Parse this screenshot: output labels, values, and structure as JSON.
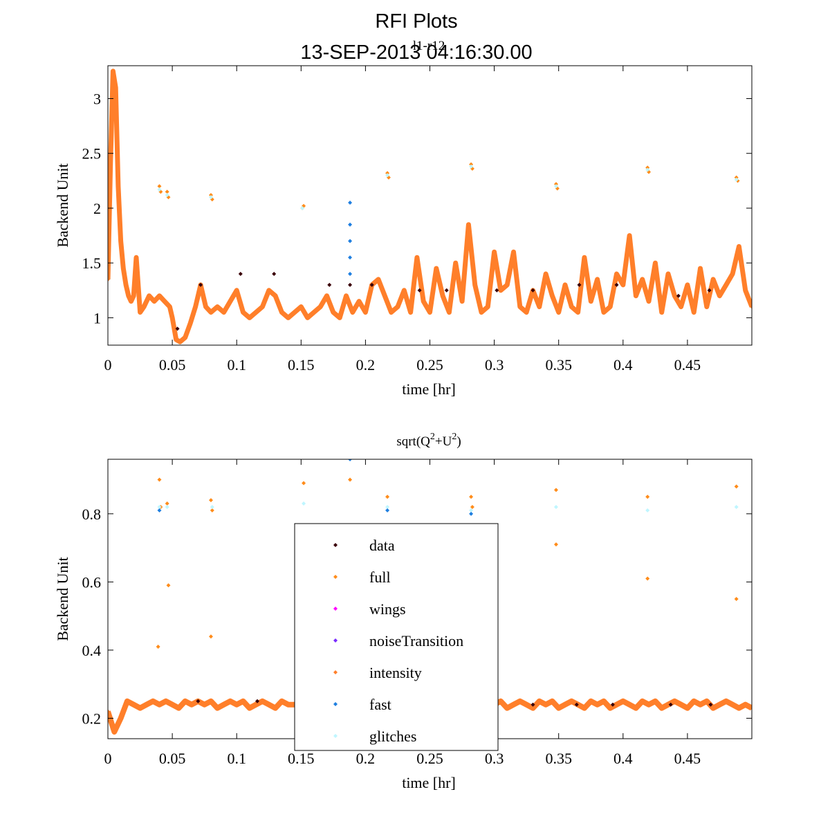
{
  "figure": {
    "title_line1": "RFI Plots",
    "title_line2": "13-SEP-2013 04:16:30.00",
    "overlay_label": "l1-r12"
  },
  "colors": {
    "data": "#3a0008",
    "full": "#ff8c1a",
    "wings": "#ff00ff",
    "noiseTransition": "#7a2bff",
    "intensity": "#ff7f2a",
    "fast": "#1f7fe0",
    "glitches": "#bff6ff"
  },
  "legend": {
    "entries": [
      "data",
      "full",
      "wings",
      "noiseTransition",
      "intensity",
      "fast",
      "glitches"
    ]
  },
  "chart_data": [
    {
      "type": "scatter",
      "title": "",
      "xlabel": "time [hr]",
      "ylabel": "Backend Unit",
      "xlim": [
        0,
        0.5
      ],
      "ylim": [
        0.75,
        3.3
      ],
      "xticks": [
        0,
        0.05,
        0.1,
        0.15,
        0.2,
        0.25,
        0.3,
        0.35,
        0.4,
        0.45
      ],
      "xtick_labels": [
        "0",
        "0.05",
        "0.1",
        "0.15",
        "0.2",
        "0.25",
        "0.3",
        "0.35",
        "0.4",
        "0.45"
      ],
      "yticks": [
        1,
        1.5,
        2,
        2.5,
        3
      ],
      "ytick_labels": [
        "1",
        "1.5",
        "2",
        "2.5",
        "3"
      ],
      "series": [
        {
          "key": "intensity",
          "x": [
            0,
            0.002,
            0.004,
            0.006,
            0.008,
            0.01,
            0.012,
            0.014,
            0.016,
            0.018,
            0.02,
            0.022,
            0.025,
            0.028,
            0.032,
            0.036,
            0.04,
            0.044,
            0.048,
            0.05,
            0.053,
            0.056,
            0.06,
            0.064,
            0.068,
            0.072,
            0.076,
            0.08,
            0.085,
            0.09,
            0.095,
            0.1,
            0.105,
            0.11,
            0.115,
            0.12,
            0.125,
            0.13,
            0.135,
            0.14,
            0.145,
            0.15,
            0.155,
            0.16,
            0.165,
            0.17,
            0.175,
            0.18,
            0.185,
            0.19,
            0.195,
            0.2,
            0.205,
            0.21,
            0.215,
            0.22,
            0.225,
            0.23,
            0.235,
            0.24,
            0.245,
            0.25,
            0.255,
            0.26,
            0.265,
            0.27,
            0.275,
            0.28,
            0.285,
            0.29,
            0.295,
            0.3,
            0.305,
            0.31,
            0.315,
            0.32,
            0.325,
            0.33,
            0.335,
            0.34,
            0.345,
            0.35,
            0.355,
            0.36,
            0.365,
            0.37,
            0.375,
            0.38,
            0.385,
            0.39,
            0.395,
            0.4,
            0.405,
            0.41,
            0.415,
            0.42,
            0.425,
            0.43,
            0.435,
            0.44,
            0.445,
            0.45,
            0.455,
            0.46,
            0.465,
            0.47,
            0.475,
            0.48,
            0.485,
            0.49,
            0.495,
            0.5
          ],
          "y": [
            1.35,
            2.4,
            3.25,
            3.1,
            2.2,
            1.7,
            1.45,
            1.3,
            1.2,
            1.15,
            1.2,
            1.55,
            1.05,
            1.1,
            1.2,
            1.15,
            1.2,
            1.15,
            1.1,
            1.0,
            0.8,
            0.78,
            0.82,
            0.95,
            1.1,
            1.3,
            1.1,
            1.05,
            1.1,
            1.05,
            1.15,
            1.25,
            1.05,
            1.0,
            1.05,
            1.1,
            1.25,
            1.2,
            1.05,
            1.0,
            1.05,
            1.1,
            1.0,
            1.05,
            1.1,
            1.2,
            1.05,
            1.0,
            1.2,
            1.05,
            1.15,
            1.05,
            1.3,
            1.35,
            1.2,
            1.05,
            1.1,
            1.25,
            1.05,
            1.55,
            1.15,
            1.05,
            1.45,
            1.2,
            1.05,
            1.5,
            1.15,
            1.85,
            1.3,
            1.05,
            1.1,
            1.6,
            1.25,
            1.3,
            1.6,
            1.1,
            1.05,
            1.25,
            1.1,
            1.4,
            1.2,
            1.05,
            1.3,
            1.1,
            1.05,
            1.55,
            1.15,
            1.35,
            1.05,
            1.1,
            1.4,
            1.3,
            1.75,
            1.2,
            1.35,
            1.15,
            1.5,
            1.05,
            1.4,
            1.2,
            1.1,
            1.3,
            1.05,
            1.45,
            1.1,
            1.35,
            1.2,
            1.3,
            1.4,
            1.65,
            1.25,
            1.1
          ]
        },
        {
          "key": "full",
          "x": [
            0.04,
            0.041,
            0.046,
            0.047,
            0.08,
            0.081,
            0.151,
            0.152,
            0.217,
            0.218,
            0.282,
            0.283,
            0.348,
            0.349,
            0.419,
            0.42,
            0.488,
            0.489
          ],
          "y": [
            2.2,
            2.15,
            2.15,
            2.1,
            2.12,
            2.08,
            2.0,
            2.02,
            2.32,
            2.28,
            2.4,
            2.36,
            2.22,
            2.18,
            2.37,
            2.33,
            2.28,
            2.25
          ]
        },
        {
          "key": "glitches",
          "x": [
            0.04,
            0.046,
            0.08,
            0.151,
            0.217,
            0.282,
            0.348,
            0.419,
            0.488
          ],
          "y": [
            2.17,
            2.12,
            2.1,
            2.0,
            2.3,
            2.38,
            2.2,
            2.35,
            2.26
          ]
        },
        {
          "key": "fast",
          "x": [
            0.188,
            0.188,
            0.188,
            0.188,
            0.188
          ],
          "y": [
            2.05,
            1.85,
            1.7,
            1.55,
            1.4
          ]
        },
        {
          "key": "data",
          "x": [
            0.054,
            0.072,
            0.103,
            0.129,
            0.172,
            0.188,
            0.205,
            0.242,
            0.263,
            0.302,
            0.33,
            0.366,
            0.395,
            0.443,
            0.467
          ],
          "y": [
            0.9,
            1.3,
            1.4,
            1.4,
            1.3,
            1.3,
            1.3,
            1.25,
            1.25,
            1.25,
            1.25,
            1.3,
            1.3,
            1.2,
            1.25
          ]
        }
      ]
    },
    {
      "type": "scatter",
      "title": "sqrt(Q²+U²)",
      "title_base": "sqrt(Q",
      "title_sup1": "2",
      "title_mid": "+U",
      "title_sup2": "2",
      "title_end": ")",
      "xlabel": "time [hr]",
      "ylabel": "Backend Unit",
      "xlim": [
        0,
        0.5
      ],
      "ylim": [
        0.14,
        0.96
      ],
      "xticks": [
        0,
        0.05,
        0.1,
        0.15,
        0.2,
        0.25,
        0.3,
        0.35,
        0.4,
        0.45
      ],
      "xtick_labels": [
        "0",
        "0.05",
        "0.1",
        "0.15",
        "0.2",
        "0.25",
        "0.3",
        "0.35",
        "0.4",
        "0.45"
      ],
      "yticks": [
        0.2,
        0.4,
        0.6,
        0.8
      ],
      "ytick_labels": [
        "0.2",
        "0.4",
        "0.6",
        "0.8"
      ],
      "series": [
        {
          "key": "intensity",
          "x": [
            0,
            0.005,
            0.01,
            0.015,
            0.02,
            0.025,
            0.03,
            0.035,
            0.04,
            0.045,
            0.05,
            0.055,
            0.06,
            0.065,
            0.07,
            0.075,
            0.08,
            0.085,
            0.09,
            0.095,
            0.1,
            0.105,
            0.11,
            0.115,
            0.12,
            0.125,
            0.13,
            0.135,
            0.14,
            0.145,
            0.3,
            0.305,
            0.31,
            0.315,
            0.32,
            0.325,
            0.33,
            0.335,
            0.34,
            0.345,
            0.35,
            0.355,
            0.36,
            0.365,
            0.37,
            0.375,
            0.38,
            0.385,
            0.39,
            0.395,
            0.4,
            0.405,
            0.41,
            0.415,
            0.42,
            0.425,
            0.43,
            0.435,
            0.44,
            0.445,
            0.45,
            0.455,
            0.46,
            0.465,
            0.47,
            0.475,
            0.48,
            0.485,
            0.49,
            0.495,
            0.5
          ],
          "y": [
            0.22,
            0.16,
            0.2,
            0.25,
            0.24,
            0.23,
            0.24,
            0.25,
            0.24,
            0.25,
            0.24,
            0.23,
            0.25,
            0.24,
            0.25,
            0.24,
            0.25,
            0.23,
            0.24,
            0.25,
            0.24,
            0.25,
            0.23,
            0.24,
            0.25,
            0.24,
            0.23,
            0.25,
            0.24,
            0.24,
            0.24,
            0.25,
            0.23,
            0.24,
            0.25,
            0.24,
            0.23,
            0.25,
            0.24,
            0.25,
            0.23,
            0.24,
            0.25,
            0.24,
            0.23,
            0.25,
            0.24,
            0.25,
            0.23,
            0.24,
            0.25,
            0.24,
            0.23,
            0.25,
            0.24,
            0.25,
            0.23,
            0.24,
            0.25,
            0.24,
            0.23,
            0.25,
            0.24,
            0.25,
            0.23,
            0.24,
            0.25,
            0.24,
            0.23,
            0.24,
            0.23
          ]
        },
        {
          "key": "full",
          "x": [
            0.04,
            0.041,
            0.046,
            0.08,
            0.081,
            0.152,
            0.188,
            0.217,
            0.282,
            0.283,
            0.348,
            0.419,
            0.488,
            0.039,
            0.047,
            0.08,
            0.348,
            0.419,
            0.488
          ],
          "y": [
            0.9,
            0.82,
            0.83,
            0.84,
            0.81,
            0.89,
            0.9,
            0.85,
            0.85,
            0.82,
            0.87,
            0.85,
            0.88,
            0.41,
            0.59,
            0.44,
            0.71,
            0.61,
            0.55
          ]
        },
        {
          "key": "glitches",
          "x": [
            0.04,
            0.046,
            0.081,
            0.152,
            0.217,
            0.282,
            0.348,
            0.419,
            0.488
          ],
          "y": [
            0.82,
            0.82,
            0.82,
            0.83,
            0.82,
            0.81,
            0.82,
            0.81,
            0.82
          ]
        },
        {
          "key": "fast",
          "x": [
            0.188,
            0.04,
            0.217,
            0.282
          ],
          "y": [
            0.96,
            0.81,
            0.81,
            0.8
          ]
        },
        {
          "key": "data",
          "x": [
            0.07,
            0.116,
            0.33,
            0.364,
            0.392,
            0.437,
            0.468
          ],
          "y": [
            0.25,
            0.25,
            0.24,
            0.24,
            0.24,
            0.24,
            0.24
          ]
        }
      ]
    }
  ]
}
